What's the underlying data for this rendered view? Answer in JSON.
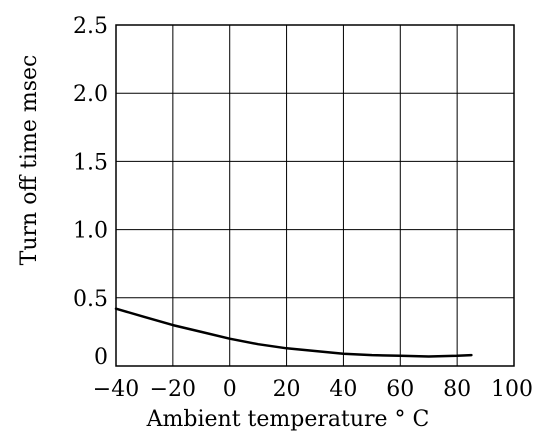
{
  "chart_data": {
    "type": "line",
    "title": "",
    "xlabel": "Ambient temperature ° C",
    "ylabel": "Turn off time msec",
    "xlim": [
      -40,
      100
    ],
    "ylim": [
      0,
      2.5
    ],
    "x_ticks": [
      -40,
      -20,
      0,
      20,
      40,
      60,
      80,
      100
    ],
    "x_tick_labels": [
      "−40",
      "−20",
      "0",
      "20",
      "40",
      "60",
      "80",
      "100"
    ],
    "y_ticks": [
      0,
      0.5,
      1.0,
      1.5,
      2.0,
      2.5
    ],
    "y_tick_labels": [
      "0",
      "0.5",
      "1.0",
      "1.5",
      "2.0",
      "2.5"
    ],
    "grid": true,
    "legend": "none",
    "series": [
      {
        "color": "#000000",
        "x": [
          -40,
          -30,
          -20,
          -10,
          0,
          10,
          20,
          30,
          40,
          50,
          60,
          70,
          80,
          85
        ],
        "y": [
          0.42,
          0.36,
          0.3,
          0.25,
          0.2,
          0.16,
          0.13,
          0.11,
          0.09,
          0.08,
          0.075,
          0.07,
          0.075,
          0.08
        ]
      }
    ]
  }
}
